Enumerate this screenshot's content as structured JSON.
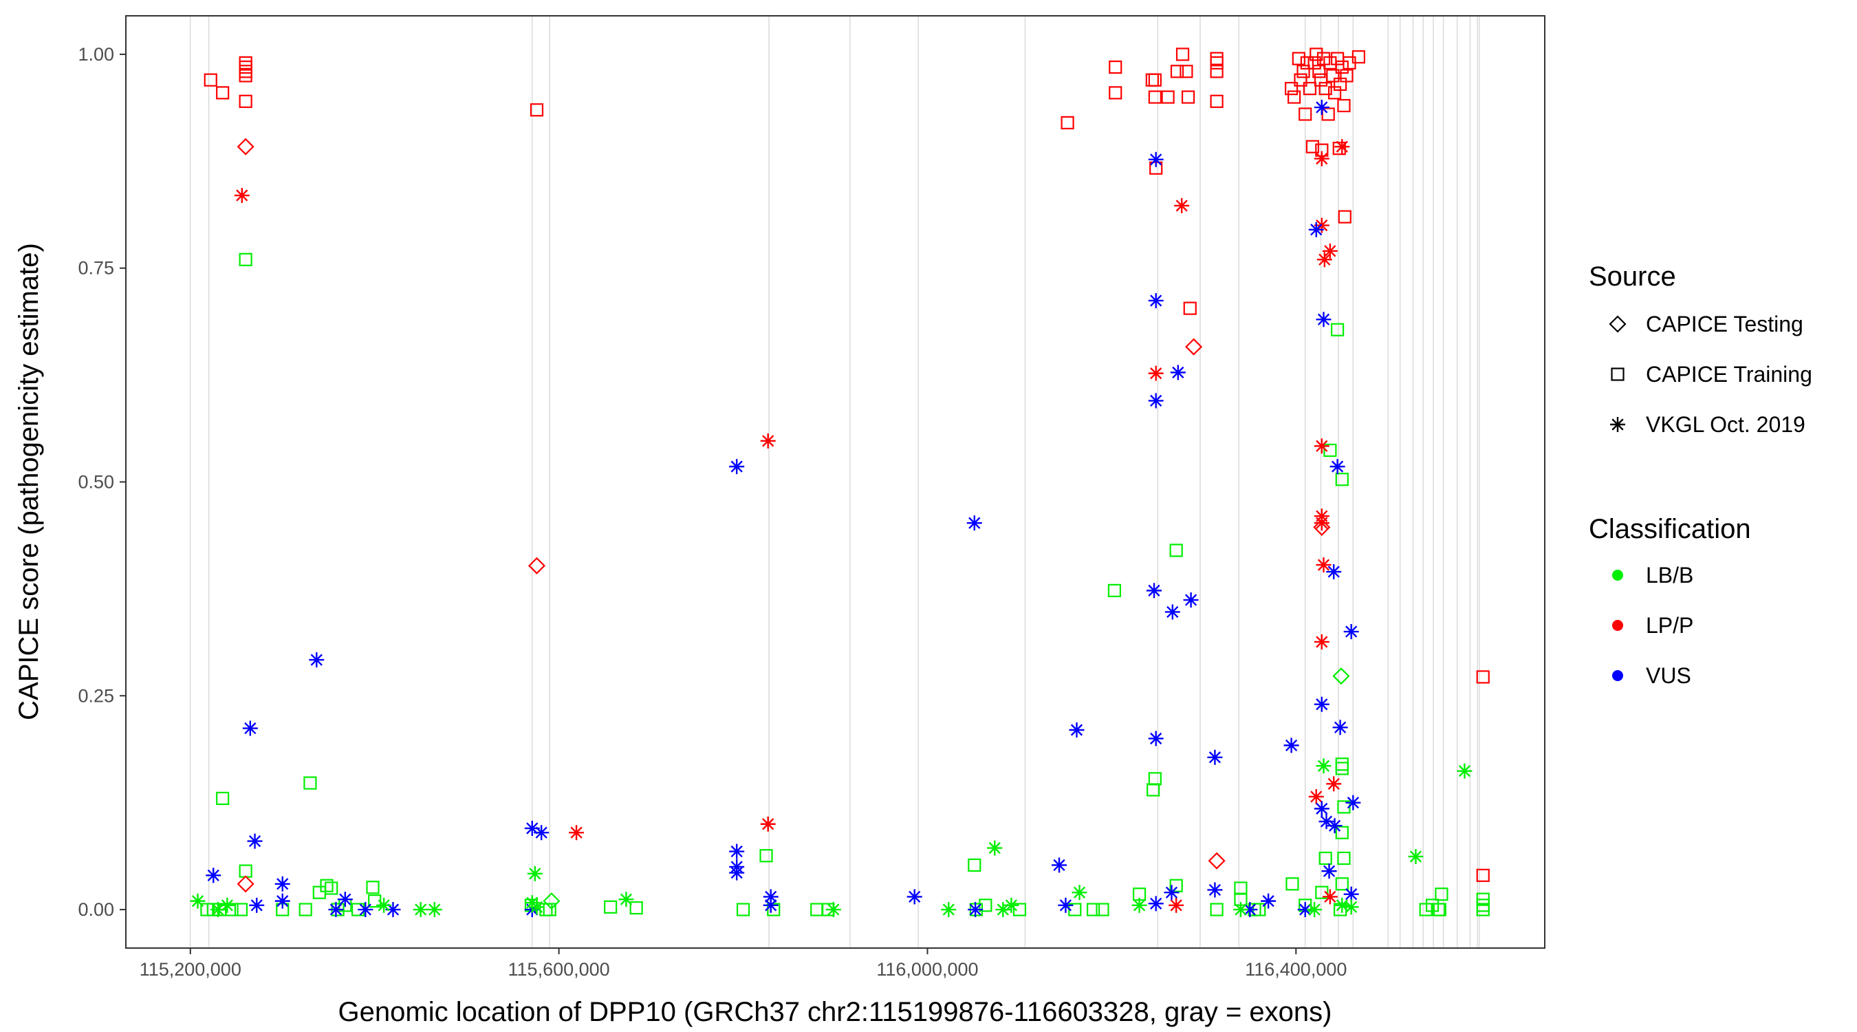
{
  "chart_data": {
    "type": "scatter",
    "xlabel": "Genomic location of DPP10 (GRCh37 chr2:115199876-116603328, gray = exons)",
    "ylabel": "CAPICE score (pathogenicity estimate)",
    "xlim": [
      115130000,
      116670000
    ],
    "ylim": [
      -0.045,
      1.045
    ],
    "x_ticks": [
      115200000,
      115600000,
      116000000,
      116400000
    ],
    "x_tick_labels": [
      "115,200,000",
      "115,600,000",
      "116,000,000",
      "116,400,000"
    ],
    "y_ticks": [
      0,
      0.25,
      0.5,
      0.75,
      1
    ],
    "y_tick_labels": [
      "0.00",
      "0.25",
      "0.50",
      "0.75",
      "1.00"
    ],
    "exons": [
      115199876,
      115220000,
      115571000,
      115590000,
      115828000,
      115916000,
      115990000,
      116106000,
      116250000,
      116296000,
      116338000,
      116410000,
      116427000,
      116446000,
      116462000,
      116500000,
      116513000,
      116527000,
      116538000,
      116549000,
      116560000,
      116575000,
      116589000,
      116597000,
      116599000
    ],
    "grid": false,
    "legend": {
      "placement": "right",
      "source_title": "Source",
      "source_items": [
        {
          "label": "CAPICE Testing",
          "shape": "diamond"
        },
        {
          "label": "CAPICE Training",
          "shape": "square"
        },
        {
          "label": "VKGL Oct. 2019",
          "shape": "asterisk"
        }
      ],
      "class_title": "Classification",
      "class_items": [
        {
          "label": "LB/B",
          "color": "#00ee00"
        },
        {
          "label": "LP/P",
          "color": "#ff0000"
        },
        {
          "label": "VUS",
          "color": "#0000ff"
        }
      ]
    },
    "series": [
      {
        "source": "CAPICE Training",
        "classification": "LP/P",
        "points": [
          [
            115222000,
            0.97
          ],
          [
            115235000,
            0.955
          ],
          [
            115260000,
            0.99
          ],
          [
            115260000,
            0.985
          ],
          [
            115260000,
            0.98
          ],
          [
            115260000,
            0.975
          ],
          [
            115260000,
            0.945
          ],
          [
            115576000,
            0.935
          ],
          [
            116152000,
            0.92
          ],
          [
            116204000,
            0.985
          ],
          [
            116204000,
            0.955
          ],
          [
            116244000,
            0.97
          ],
          [
            116247000,
            0.97
          ],
          [
            116247000,
            0.95
          ],
          [
            116248000,
            0.867
          ],
          [
            116261000,
            0.95
          ],
          [
            116271000,
            0.98
          ],
          [
            116277000,
            1.0
          ],
          [
            116281000,
            0.98
          ],
          [
            116283000,
            0.95
          ],
          [
            116285000,
            0.703
          ],
          [
            116314000,
            0.995
          ],
          [
            116314000,
            0.99
          ],
          [
            116314000,
            0.98
          ],
          [
            116314000,
            0.945
          ],
          [
            116395000,
            0.96
          ],
          [
            116398000,
            0.95
          ],
          [
            116403000,
            0.995
          ],
          [
            116405000,
            0.97
          ],
          [
            116408000,
            0.98
          ],
          [
            116410000,
            0.93
          ],
          [
            116412000,
            0.99
          ],
          [
            116415000,
            0.96
          ],
          [
            116418000,
            0.892
          ],
          [
            116420000,
            0.99
          ],
          [
            116422000,
            1.0
          ],
          [
            116425000,
            0.98
          ],
          [
            116427000,
            0.97
          ],
          [
            116428000,
            0.888
          ],
          [
            116430000,
            0.995
          ],
          [
            116432000,
            0.96
          ],
          [
            116435000,
            0.93
          ],
          [
            116437000,
            0.99
          ],
          [
            116440000,
            0.975
          ],
          [
            116442000,
            0.955
          ],
          [
            116445000,
            0.995
          ],
          [
            116447000,
            0.89
          ],
          [
            116448000,
            0.965
          ],
          [
            116450000,
            0.985
          ],
          [
            116452000,
            0.94
          ],
          [
            116453000,
            0.81
          ],
          [
            116455000,
            0.975
          ],
          [
            116458000,
            0.99
          ],
          [
            116468000,
            0.997
          ],
          [
            116603000,
            0.272
          ],
          [
            116603000,
            0.04
          ]
        ]
      },
      {
        "source": "CAPICE Training",
        "classification": "LB/B",
        "points": [
          [
            115235000,
            0.13
          ],
          [
            115260000,
            0.045
          ],
          [
            115260000,
            0.76
          ],
          [
            115330000,
            0.148
          ],
          [
            115300000,
            0.0
          ],
          [
            115325000,
            0.0
          ],
          [
            115340000,
            0.02
          ],
          [
            115348000,
            0.028
          ],
          [
            115353000,
            0.025
          ],
          [
            115360000,
            0.0
          ],
          [
            115368000,
            0.005
          ],
          [
            115382000,
            0.0
          ],
          [
            115398000,
            0.026
          ],
          [
            115400000,
            0.01
          ],
          [
            115570000,
            0.005
          ],
          [
            115586000,
            0.0
          ],
          [
            115590000,
            0.0
          ],
          [
            115656000,
            0.003
          ],
          [
            115684000,
            0.002
          ],
          [
            115800000,
            0.0
          ],
          [
            115825000,
            0.063
          ],
          [
            115833000,
            0.0
          ],
          [
            115880000,
            0.0
          ],
          [
            115892000,
            0.0
          ],
          [
            116051000,
            0.052
          ],
          [
            116053000,
            0.0
          ],
          [
            116063000,
            0.005
          ],
          [
            116100000,
            0.0
          ],
          [
            116160000,
            0.0
          ],
          [
            116180000,
            0.0
          ],
          [
            116190000,
            0.0
          ],
          [
            116203000,
            0.373
          ],
          [
            116230000,
            0.018
          ],
          [
            116245000,
            0.14
          ],
          [
            116247000,
            0.153
          ],
          [
            116270000,
            0.42
          ],
          [
            116270000,
            0.028
          ],
          [
            116314000,
            0.0
          ],
          [
            116340000,
            0.025
          ],
          [
            116340000,
            0.012
          ],
          [
            116355000,
            0.0
          ],
          [
            116360000,
            0.0
          ],
          [
            116396000,
            0.03
          ],
          [
            116410000,
            0.005
          ],
          [
            116428000,
            0.02
          ],
          [
            116432000,
            0.06
          ],
          [
            116437000,
            0.537
          ],
          [
            116445000,
            0.678
          ],
          [
            116450000,
            0.503
          ],
          [
            116450000,
            0.165
          ],
          [
            116450000,
            0.17
          ],
          [
            116452000,
            0.12
          ],
          [
            116450000,
            0.09
          ],
          [
            116452000,
            0.06
          ],
          [
            116450000,
            0.03
          ],
          [
            116448000,
            0.0
          ],
          [
            116541000,
            0.0
          ],
          [
            116548000,
            0.005
          ],
          [
            116555000,
            0.0
          ],
          [
            116556000,
            0.0
          ],
          [
            116558000,
            0.018
          ],
          [
            116603000,
            0.012
          ],
          [
            116603000,
            0.005
          ],
          [
            116603000,
            0.0
          ],
          [
            115218000,
            0.0
          ],
          [
            115225000,
            0.0
          ],
          [
            115232000,
            0.0
          ],
          [
            115245000,
            0.0
          ],
          [
            115255000,
            0.0
          ]
        ]
      },
      {
        "source": "CAPICE Testing",
        "classification": "LP/P",
        "points": [
          [
            115260000,
            0.892
          ],
          [
            115260000,
            0.03
          ],
          [
            115576000,
            0.402
          ],
          [
            116289000,
            0.658
          ],
          [
            116314000,
            0.057
          ],
          [
            116428000,
            0.447
          ]
        ]
      },
      {
        "source": "CAPICE Testing",
        "classification": "LB/B",
        "points": [
          [
            115592000,
            0.01
          ],
          [
            116449000,
            0.273
          ]
        ]
      },
      {
        "source": "VKGL Oct. 2019",
        "classification": "LP/P",
        "points": [
          [
            115256000,
            0.835
          ],
          [
            115619000,
            0.09
          ],
          [
            115827000,
            0.548
          ],
          [
            115827000,
            0.1
          ],
          [
            116248000,
            0.627
          ],
          [
            116276000,
            0.823
          ],
          [
            116428000,
            0.542
          ],
          [
            116428000,
            0.46
          ],
          [
            116428000,
            0.452
          ],
          [
            116430000,
            0.403
          ],
          [
            116428000,
            0.313
          ],
          [
            116428000,
            0.8
          ],
          [
            116431000,
            0.76
          ],
          [
            116437000,
            0.77
          ],
          [
            116441000,
            0.147
          ],
          [
            116422000,
            0.132
          ],
          [
            116450000,
            0.892
          ],
          [
            116428000,
            0.878
          ],
          [
            116270000,
            0.005
          ],
          [
            116437000,
            0.015
          ]
        ]
      },
      {
        "source": "VKGL Oct. 2019",
        "classification": "VUS",
        "points": [
          [
            115225000,
            0.04
          ],
          [
            115265000,
            0.212
          ],
          [
            115270000,
            0.08
          ],
          [
            115272000,
            0.005
          ],
          [
            115300000,
            0.03
          ],
          [
            115300000,
            0.01
          ],
          [
            115337000,
            0.292
          ],
          [
            115358000,
            0.0
          ],
          [
            115368000,
            0.012
          ],
          [
            115390000,
            0.0
          ],
          [
            115420000,
            0.0
          ],
          [
            115571000,
            0.095
          ],
          [
            115581000,
            0.09
          ],
          [
            115571000,
            0.0
          ],
          [
            115793000,
            0.518
          ],
          [
            115793000,
            0.068
          ],
          [
            115793000,
            0.05
          ],
          [
            115793000,
            0.043
          ],
          [
            115830000,
            0.015
          ],
          [
            115830000,
            0.005
          ],
          [
            116051000,
            0.452
          ],
          [
            115986000,
            0.015
          ],
          [
            116052000,
            0.0
          ],
          [
            116143000,
            0.052
          ],
          [
            116162000,
            0.21
          ],
          [
            116150000,
            0.005
          ],
          [
            116248000,
            0.877
          ],
          [
            116248000,
            0.712
          ],
          [
            116272000,
            0.628
          ],
          [
            116248000,
            0.595
          ],
          [
            116246000,
            0.373
          ],
          [
            116266000,
            0.348
          ],
          [
            116286000,
            0.362
          ],
          [
            116248000,
            0.2
          ],
          [
            116312000,
            0.178
          ],
          [
            116248000,
            0.007
          ],
          [
            116265000,
            0.02
          ],
          [
            116312000,
            0.023
          ],
          [
            116350000,
            0.0
          ],
          [
            116370000,
            0.01
          ],
          [
            116395000,
            0.192
          ],
          [
            116422000,
            0.795
          ],
          [
            116428000,
            0.938
          ],
          [
            116430000,
            0.69
          ],
          [
            116441000,
            0.395
          ],
          [
            116445000,
            0.518
          ],
          [
            116448000,
            0.213
          ],
          [
            116428000,
            0.24
          ],
          [
            116436000,
            0.045
          ],
          [
            116460000,
            0.325
          ],
          [
            116462000,
            0.125
          ],
          [
            116428000,
            0.118
          ],
          [
            116433000,
            0.103
          ],
          [
            116442000,
            0.098
          ],
          [
            116460000,
            0.018
          ],
          [
            116410000,
            0.0
          ]
        ]
      },
      {
        "source": "VKGL Oct. 2019",
        "classification": "LB/B",
        "points": [
          [
            115208000,
            0.01
          ],
          [
            115230000,
            0.0
          ],
          [
            115240000,
            0.005
          ],
          [
            115410000,
            0.005
          ],
          [
            115450000,
            0.0
          ],
          [
            115465000,
            0.0
          ],
          [
            115574000,
            0.042
          ],
          [
            115571000,
            0.008
          ],
          [
            115576000,
            0.003
          ],
          [
            115673000,
            0.012
          ],
          [
            115898000,
            0.0
          ],
          [
            116023000,
            0.0
          ],
          [
            116073000,
            0.072
          ],
          [
            116082000,
            0.0
          ],
          [
            116091000,
            0.005
          ],
          [
            116165000,
            0.02
          ],
          [
            116230000,
            0.005
          ],
          [
            116340000,
            0.0
          ],
          [
            116530000,
            0.062
          ],
          [
            116583000,
            0.162
          ],
          [
            116430000,
            0.168
          ],
          [
            116420000,
            0.0
          ],
          [
            116450000,
            0.005
          ],
          [
            116460000,
            0.003
          ]
        ]
      }
    ]
  }
}
